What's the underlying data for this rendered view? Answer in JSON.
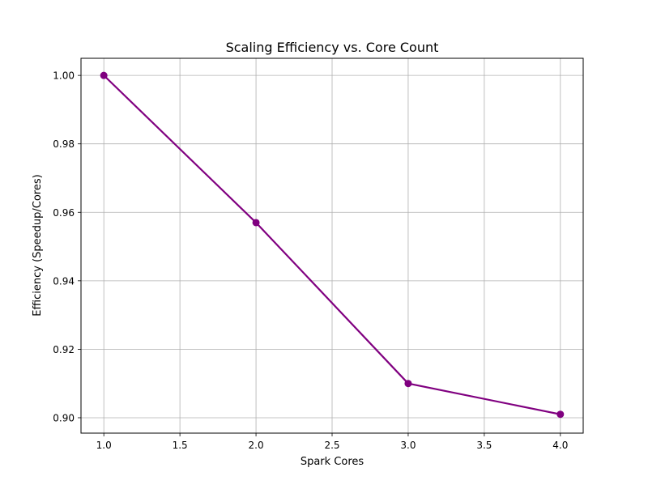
{
  "chart_data": {
    "type": "line",
    "title": "Scaling Efficiency vs. Core Count",
    "xlabel": "Spark Cores",
    "ylabel": "Efficiency (Speedup/Cores)",
    "x": [
      1,
      2,
      3,
      4
    ],
    "series": [
      {
        "values": [
          1.0,
          0.957,
          0.91,
          0.901
        ],
        "color": "#800080",
        "marker": "circle"
      }
    ],
    "xlim": [
      0.85,
      4.15
    ],
    "ylim": [
      0.8955,
      1.005
    ],
    "xticks": [
      1.0,
      1.5,
      2.0,
      2.5,
      3.0,
      3.5,
      4.0
    ],
    "xtick_labels": [
      "1.0",
      "1.5",
      "2.0",
      "2.5",
      "3.0",
      "3.5",
      "4.0"
    ],
    "yticks": [
      0.9,
      0.92,
      0.94,
      0.96,
      0.98,
      1.0
    ],
    "ytick_labels": [
      "0.90",
      "0.92",
      "0.94",
      "0.96",
      "0.98",
      "1.00"
    ],
    "grid": true,
    "legend": "none"
  }
}
